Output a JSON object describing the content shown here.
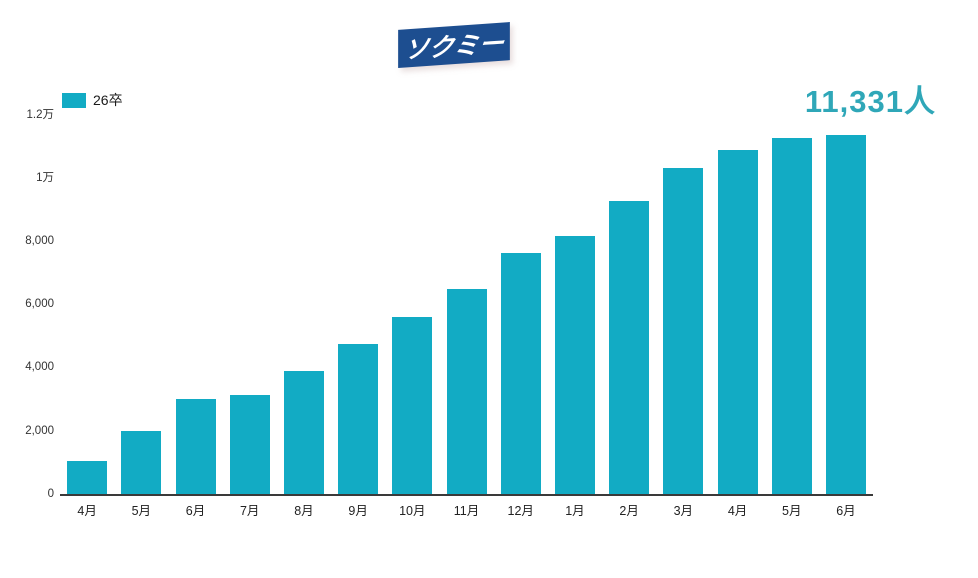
{
  "logo": {
    "text": "ソクミー",
    "bg_color": "#1d4e90"
  },
  "legend": {
    "label": "26卒",
    "swatch_color": "#12abc4"
  },
  "annotation": {
    "value_label": "11,331人",
    "color": "#2fa7b8"
  },
  "chart_data": {
    "type": "bar",
    "title": "",
    "xlabel": "",
    "ylabel": "",
    "series_name": "26卒",
    "categories": [
      "4月",
      "5月",
      "6月",
      "7月",
      "8月",
      "9月",
      "10月",
      "11月",
      "12月",
      "1月",
      "2月",
      "3月",
      "4月",
      "5月",
      "6月"
    ],
    "values": [
      1050,
      2000,
      3000,
      3130,
      3870,
      4730,
      5580,
      6470,
      7620,
      8160,
      9240,
      10290,
      10860,
      11240,
      11331
    ],
    "ylim": [
      0,
      12000
    ],
    "yticks": [
      {
        "value": 0,
        "label": "0"
      },
      {
        "value": 2000,
        "label": "2,000"
      },
      {
        "value": 4000,
        "label": "4,000"
      },
      {
        "value": 6000,
        "label": "6,000"
      },
      {
        "value": 8000,
        "label": "8,000"
      },
      {
        "value": 10000,
        "label": "1万"
      },
      {
        "value": 12000,
        "label": "1.2万"
      }
    ],
    "bar_color": "#12abc4",
    "grid": false,
    "legend_position": "top-left",
    "annotation_text": "11,331人"
  }
}
